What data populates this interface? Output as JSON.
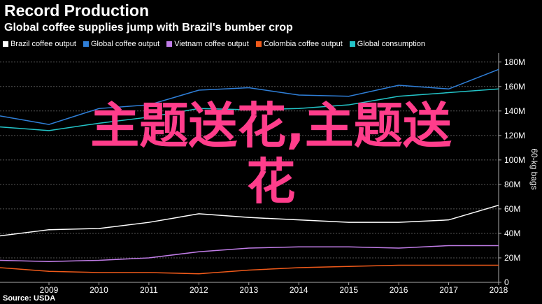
{
  "header": {
    "title": "Record Production",
    "subtitle": "Global coffee supplies jump with Brazil's bumber crop"
  },
  "source": "Source: USDA",
  "overlay": {
    "line1": "主题送花,主题送",
    "line2": "花",
    "color": "#ff3d8b"
  },
  "chart_data": {
    "type": "line",
    "title": "Record Production",
    "subtitle": "Global coffee supplies jump with Brazil's bumber crop",
    "ylabel": "60-kg bags",
    "x": [
      "2008",
      "2009",
      "2010",
      "2011",
      "2012",
      "2013",
      "2014",
      "2015",
      "2016",
      "2017",
      "2018"
    ],
    "x_ticks": [
      "2009",
      "2010",
      "2011",
      "2012",
      "2013",
      "2014",
      "2015",
      "2016",
      "2017",
      "2018"
    ],
    "y_ticks": [
      "0",
      "20M",
      "40M",
      "60M",
      "80M",
      "100M",
      "120M",
      "140M",
      "160M",
      "180M"
    ],
    "ylim": [
      0,
      185
    ],
    "y_unit": "millions of 60-kg bags",
    "grid": true,
    "legend_position": "top-left",
    "series": [
      {
        "name": "Brazil coffee output",
        "color": "#ffffff",
        "values": [
          38,
          43,
          44,
          49,
          56,
          53,
          51,
          49,
          49,
          51,
          63
        ]
      },
      {
        "name": "Global coffee output",
        "color": "#2f7fd8",
        "values": [
          136,
          129,
          142,
          145,
          157,
          159,
          153,
          152,
          161,
          158,
          174
        ]
      },
      {
        "name": "Vietnam coffee output",
        "color": "#c17de8",
        "values": [
          18,
          17,
          18,
          20,
          25,
          28,
          29,
          29,
          28,
          30,
          30
        ]
      },
      {
        "name": "Colombia coffee output",
        "color": "#f05a1a",
        "values": [
          12,
          9,
          8,
          8,
          7,
          10,
          12,
          13,
          14,
          14,
          14
        ]
      },
      {
        "name": "Global consumption",
        "color": "#23c4c8",
        "values": [
          127,
          124,
          130,
          135,
          142,
          141,
          142,
          145,
          152,
          155,
          158
        ]
      }
    ]
  }
}
